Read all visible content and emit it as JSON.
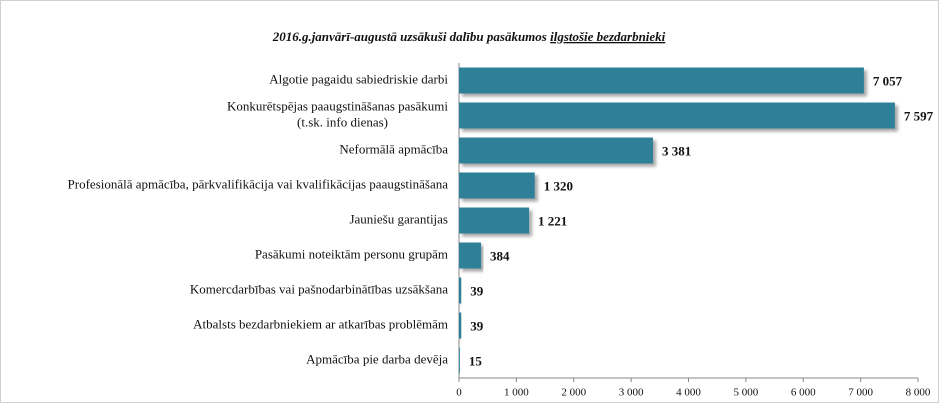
{
  "chart_data": {
    "type": "bar",
    "orientation": "horizontal",
    "title": [
      "2016.g.janvārī-augustā uzsākuši dalību pasākumos",
      "ilgstošie bezdarbnieki"
    ],
    "categories": [
      "Algotie pagaidu sabiedriskie darbi",
      "Konkurētspējas paaugstināšanas pasākumi\n(t.sk. info dienas)",
      "Neformālā apmācība",
      "Profesionālā apmācība, pārkvalifikācija vai kvalifikācijas paaugstināšana",
      "Jauniešu garantijas",
      "Pasākumi noteiktām personu grupām",
      "Komercdarbības vai pašnodarbinātības uzsākšana",
      "Atbalsts bezdarbniekiem ar atkarības problēmām",
      "Apmācība pie darba devēja"
    ],
    "values": [
      7057,
      7597,
      3381,
      1320,
      1221,
      384,
      39,
      39,
      15
    ],
    "value_labels": [
      "7 057",
      "7 597",
      "3 381",
      "1 320",
      "1 221",
      "384",
      "39",
      "39",
      "15"
    ],
    "color": "#2e7f98",
    "xlim": [
      0,
      8000
    ],
    "xticks": [
      0,
      {
        "value": 1000,
        "label": "1 000"
      },
      {
        "value": 2000,
        "label": "2 000"
      },
      {
        "value": 3000,
        "label": "3 000"
      },
      {
        "value": 4000,
        "label": "4 000"
      },
      {
        "value": 5000,
        "label": "5 000"
      },
      {
        "value": 6000,
        "label": "6 000"
      },
      {
        "value": 7000,
        "label": "7 000"
      },
      {
        "value": 8000,
        "label": "8 000"
      }
    ],
    "grid": false
  }
}
